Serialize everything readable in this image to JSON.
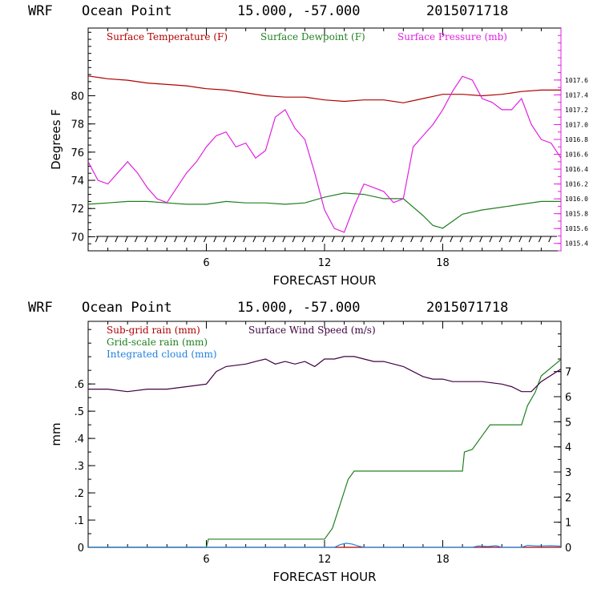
{
  "colors": {
    "temperature": "#b00000",
    "dewpoint": "#208020",
    "pressure": "#e020e0",
    "subgrid": "#b00000",
    "gridscale": "#208020",
    "cloud": "#2080e0",
    "wind": "#400040"
  },
  "chart_data": [
    {
      "type": "line",
      "header": {
        "model": "WRF",
        "location": "Ocean Point",
        "coords": "15.000, -57.000",
        "init": "2015071718"
      },
      "xlabel": "FORECAST HOUR",
      "ylabel": "Degrees F",
      "xlim": [
        0,
        24
      ],
      "ylim": [
        69,
        84.8
      ],
      "y2lim": [
        1015.3,
        1018.3
      ],
      "x_ticks": [
        6,
        12,
        18
      ],
      "x_tick_labels": [
        "6",
        "12",
        "18"
      ],
      "y_ticks": [
        70,
        72,
        74,
        76,
        78,
        80
      ],
      "y_tick_labels": [
        "70",
        "72",
        "74",
        "76",
        "78",
        "80"
      ],
      "y2_ticks": [
        1015.4,
        1015.6,
        1015.8,
        1016.0,
        1016.2,
        1016.4,
        1016.6,
        1016.8,
        1017.0,
        1017.2,
        1017.4,
        1017.6
      ],
      "y2_tick_labels": [
        "1015.4",
        "1015.6",
        "1015.8",
        "1016.0",
        "1016.2",
        "1016.4",
        "1016.6",
        "1016.8",
        "1017.0",
        "1017.2",
        "1017.4",
        "1017.6"
      ],
      "legend": [
        "Surface Temperature (F)",
        "Surface Dewpoint (F)",
        "Surface Pressure (mb)"
      ],
      "series": [
        {
          "name": "Surface Temperature (F)",
          "axis": "left",
          "x": [
            0,
            1,
            2,
            3,
            4,
            5,
            6,
            7,
            8,
            9,
            10,
            11,
            12,
            13,
            14,
            15,
            16,
            17,
            18,
            19,
            20,
            21,
            22,
            23,
            24
          ],
          "y": [
            81.4,
            81.2,
            81.1,
            80.9,
            80.8,
            80.7,
            80.5,
            80.4,
            80.2,
            80.0,
            79.9,
            79.9,
            79.7,
            79.6,
            79.7,
            79.7,
            79.5,
            79.8,
            80.1,
            80.1,
            80.0,
            80.1,
            80.3,
            80.4,
            80.4
          ]
        },
        {
          "name": "Surface Dewpoint (F)",
          "axis": "left",
          "x": [
            0,
            1,
            2,
            3,
            4,
            5,
            6,
            7,
            8,
            9,
            10,
            11,
            12,
            13,
            14,
            15,
            16,
            17,
            17.5,
            18,
            19,
            20,
            21,
            22,
            23,
            24
          ],
          "y": [
            72.3,
            72.4,
            72.5,
            72.5,
            72.4,
            72.3,
            72.3,
            72.5,
            72.4,
            72.4,
            72.3,
            72.4,
            72.8,
            73.1,
            73.0,
            72.7,
            72.7,
            71.5,
            70.8,
            70.6,
            71.6,
            71.9,
            72.1,
            72.3,
            72.5,
            72.5
          ]
        },
        {
          "name": "Surface Pressure (mb)",
          "axis": "right",
          "x": [
            0,
            0.5,
            1,
            1.5,
            2,
            2.5,
            3,
            3.5,
            4,
            4.5,
            5,
            5.5,
            6,
            6.5,
            7,
            7.5,
            8,
            8.5,
            9,
            9.5,
            10,
            10.5,
            11,
            11.5,
            12,
            12.5,
            13,
            13.5,
            14,
            14.5,
            15,
            15.5,
            16,
            16.5,
            17,
            17.5,
            18,
            18.5,
            19,
            19.5,
            20,
            20.5,
            21,
            21.5,
            22,
            22.5,
            23,
            23.5,
            24
          ],
          "y": [
            1016.5,
            1016.25,
            1016.2,
            1016.35,
            1016.5,
            1016.35,
            1016.15,
            1016.0,
            1015.95,
            1016.15,
            1016.35,
            1016.5,
            1016.7,
            1016.85,
            1016.9,
            1016.7,
            1016.75,
            1016.55,
            1016.65,
            1017.1,
            1017.2,
            1016.95,
            1016.8,
            1016.35,
            1015.85,
            1015.6,
            1015.55,
            1015.9,
            1016.2,
            1016.15,
            1016.1,
            1015.95,
            1016.0,
            1016.7,
            1016.85,
            1017.0,
            1017.2,
            1017.45,
            1017.65,
            1017.6,
            1017.35,
            1017.3,
            1017.2,
            1017.2,
            1017.35,
            1017.0,
            1016.8,
            1016.75,
            1016.55
          ]
        }
      ]
    },
    {
      "type": "line",
      "header": {
        "model": "WRF",
        "location": "Ocean Point",
        "coords": "15.000, -57.000",
        "init": "2015071718"
      },
      "xlabel": "FORECAST HOUR",
      "ylabel": "mm",
      "xlim": [
        0,
        24
      ],
      "ylim": [
        0,
        0.83
      ],
      "y2lim": [
        0,
        9.0
      ],
      "x_ticks": [
        6,
        12,
        18
      ],
      "x_tick_labels": [
        "6",
        "12",
        "18"
      ],
      "y_ticks": [
        0,
        0.1,
        0.2,
        0.3,
        0.4,
        0.5,
        0.6
      ],
      "y_tick_labels": [
        "0",
        ".1",
        ".2",
        ".3",
        ".4",
        ".5",
        ".6"
      ],
      "y2_ticks": [
        0,
        1,
        2,
        3,
        4,
        5,
        6,
        7
      ],
      "y2_tick_labels": [
        "0",
        "1",
        "2",
        "3",
        "4",
        "5",
        "6",
        "7"
      ],
      "legend": [
        "Sub-grid rain (mm)",
        "Grid-scale rain (mm)",
        "Integrated cloud (mm)",
        "Surface Wind Speed (m/s)"
      ],
      "series": [
        {
          "name": "Sub-grid rain (mm)",
          "axis": "left",
          "x": [
            0,
            24
          ],
          "y": [
            0,
            0
          ]
        },
        {
          "name": "Grid-scale rain (mm)",
          "axis": "left",
          "x": [
            0,
            6,
            6.1,
            12,
            12.4,
            12.8,
            13.2,
            13.5,
            19,
            19.1,
            19.5,
            20,
            20.4,
            21,
            22,
            22.3,
            22.7,
            23,
            24
          ],
          "y": [
            0,
            0,
            0.03,
            0.03,
            0.07,
            0.16,
            0.25,
            0.28,
            0.28,
            0.35,
            0.36,
            0.41,
            0.45,
            0.45,
            0.45,
            0.52,
            0.57,
            0.63,
            0.69
          ]
        },
        {
          "name": "Integrated cloud (mm)",
          "axis": "left",
          "x": [
            0,
            12.5,
            12.8,
            13.1,
            13.4,
            13.7,
            14,
            19.5,
            19.8,
            20.3,
            20.7,
            21,
            22,
            22.3,
            22.8,
            23.5,
            24
          ],
          "y": [
            0,
            0,
            0.01,
            0.015,
            0.012,
            0.005,
            0,
            0,
            0.005,
            0.003,
            0.006,
            0,
            0,
            0.007,
            0.005,
            0.006,
            0.004
          ]
        },
        {
          "name": "Surface Wind Speed (m/s)",
          "axis": "right",
          "x": [
            0,
            1,
            2,
            3,
            4,
            5,
            6,
            6.5,
            7,
            8,
            8.5,
            9,
            9.5,
            10,
            10.5,
            11,
            11.5,
            12,
            12.5,
            13,
            13.5,
            14,
            14.5,
            15,
            16,
            17,
            17.5,
            18,
            18.5,
            19,
            20,
            21,
            21.5,
            22,
            22.5,
            23,
            24
          ],
          "y": [
            6.3,
            6.3,
            6.2,
            6.3,
            6.3,
            6.4,
            6.5,
            7.0,
            7.2,
            7.3,
            7.4,
            7.5,
            7.3,
            7.4,
            7.3,
            7.4,
            7.2,
            7.5,
            7.5,
            7.6,
            7.6,
            7.5,
            7.4,
            7.4,
            7.2,
            6.8,
            6.7,
            6.7,
            6.6,
            6.6,
            6.6,
            6.5,
            6.4,
            6.2,
            6.2,
            6.6,
            7.1
          ]
        }
      ]
    }
  ]
}
